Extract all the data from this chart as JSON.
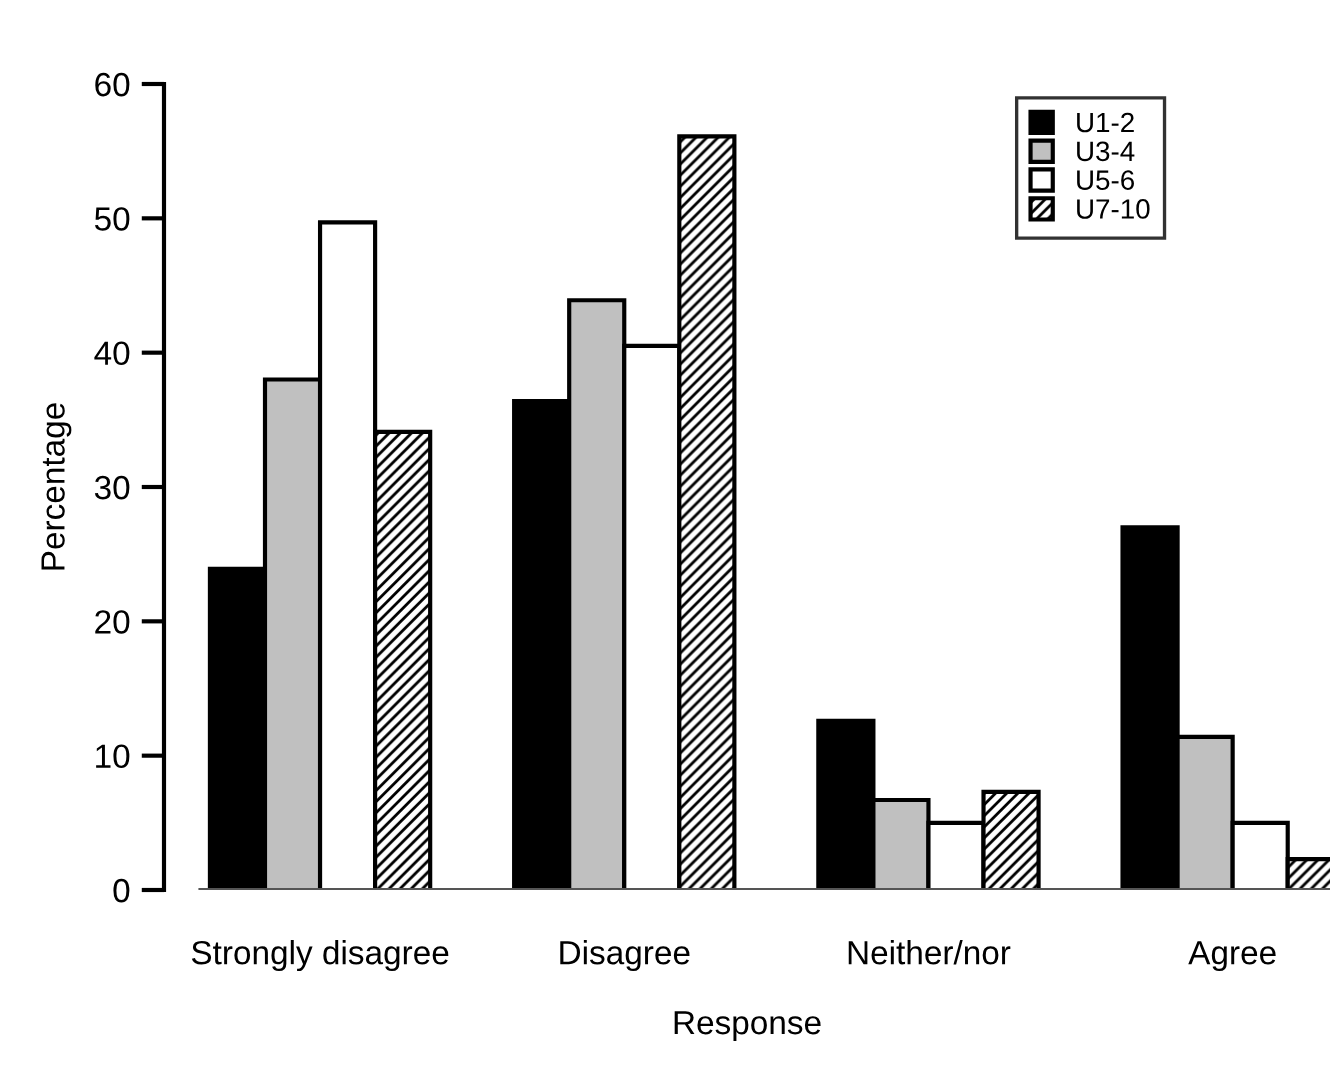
{
  "chart_data": {
    "type": "bar",
    "xlabel": "Response",
    "ylabel": "Percentage",
    "categories": [
      "Strongly disagree",
      "Disagree",
      "Neither/nor",
      "Agree"
    ],
    "series": [
      {
        "name": "U1-2",
        "color": "#000000",
        "values": [
          23.9,
          36.4,
          12.6,
          27.0
        ]
      },
      {
        "name": "U3-4",
        "color": "#c0c0c0",
        "values": [
          38.0,
          43.9,
          6.7,
          11.4
        ]
      },
      {
        "name": "U5-6",
        "color": "#ffffff",
        "values": [
          49.7,
          40.5,
          5.0,
          5.0
        ]
      },
      {
        "name": "U7-10",
        "color": "#000000",
        "values": [
          34.1,
          56.1,
          7.3,
          2.3
        ]
      }
    ],
    "ylim": [
      0,
      60
    ],
    "yticks": [
      0,
      10,
      20,
      30,
      40,
      50,
      60
    ],
    "grid": false,
    "legend": "top right"
  }
}
